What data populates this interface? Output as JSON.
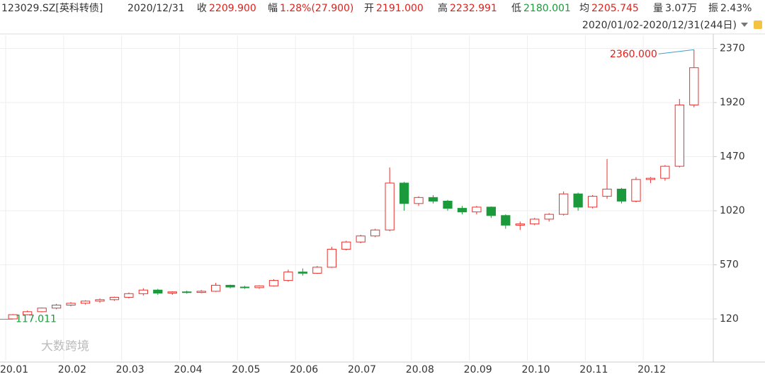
{
  "header": {
    "code": "123029.SZ[英科转债]",
    "date": "2020/12/31",
    "items": [
      {
        "label": "收",
        "value": "2209.900",
        "color": "#e0201b"
      },
      {
        "label": "幅",
        "value": "1.28%(27.900)",
        "color": "#e0201b"
      },
      {
        "label": "开",
        "value": "2191.000",
        "color": "#e0201b"
      },
      {
        "label": "高",
        "value": "2232.991",
        "color": "#e0201b"
      },
      {
        "label": "低",
        "value": "2180.001",
        "color": "#1a9a3a"
      },
      {
        "label": "均",
        "value": "2205.745",
        "color": "#e0201b"
      },
      {
        "label": "量",
        "value": "3.07万",
        "color": "#333333"
      },
      {
        "label": "振",
        "value": "2.43%",
        "color": "#333333"
      }
    ],
    "range": "2020/01/02-2020/12/31(244日)"
  },
  "watermark": "大数跨境",
  "chart_data": {
    "type": "candlestick",
    "categories": [
      "20.01",
      null,
      null,
      null,
      "20.02",
      null,
      null,
      null,
      "20.03",
      null,
      null,
      null,
      "20.04",
      null,
      null,
      null,
      "20.05",
      null,
      null,
      null,
      "20.06",
      null,
      null,
      null,
      "20.07",
      null,
      null,
      null,
      "20.08",
      null,
      null,
      null,
      "20.09",
      null,
      null,
      null,
      "20.10",
      null,
      null,
      null,
      "20.11",
      null,
      null,
      null,
      "20.12",
      null,
      null,
      null
    ],
    "open": [
      120,
      155,
      180,
      210,
      235,
      250,
      268,
      280,
      300,
      330,
      360,
      335,
      345,
      340,
      350,
      400,
      385,
      380,
      395,
      440,
      510,
      500,
      550,
      700,
      760,
      810,
      860,
      1250,
      1080,
      1130,
      1100,
      1040,
      1010,
      1050,
      980,
      900,
      910,
      950,
      990,
      1160,
      1050,
      1140,
      1200,
      1100,
      1280,
      1290,
      1390,
      1900
    ],
    "high": [
      160,
      190,
      215,
      245,
      260,
      275,
      290,
      305,
      340,
      375,
      370,
      350,
      355,
      360,
      420,
      405,
      395,
      400,
      450,
      530,
      540,
      560,
      720,
      770,
      820,
      870,
      1380,
      1260,
      1140,
      1150,
      1110,
      1060,
      1060,
      1055,
      990,
      930,
      960,
      1000,
      1180,
      1170,
      1150,
      1450,
      1210,
      1300,
      1300,
      1400,
      1950,
      2360
    ],
    "low": [
      117.011,
      150,
      175,
      200,
      225,
      240,
      255,
      270,
      290,
      315,
      320,
      320,
      330,
      335,
      345,
      375,
      370,
      370,
      390,
      430,
      480,
      495,
      545,
      690,
      750,
      800,
      850,
      1020,
      1060,
      1080,
      1020,
      990,
      990,
      960,
      870,
      860,
      900,
      930,
      980,
      1020,
      1040,
      1120,
      1080,
      1090,
      1250,
      1270,
      1380,
      1880
    ],
    "close": [
      155,
      180,
      210,
      235,
      250,
      268,
      280,
      300,
      330,
      360,
      335,
      345,
      340,
      350,
      400,
      385,
      380,
      395,
      440,
      510,
      500,
      550,
      700,
      760,
      810,
      860,
      1250,
      1080,
      1130,
      1100,
      1040,
      1010,
      1050,
      980,
      900,
      910,
      950,
      990,
      1160,
      1050,
      1140,
      1200,
      1100,
      1280,
      1290,
      1390,
      1900,
      2210
    ],
    "up_color": "#e8322e",
    "down_color": "#1a9a3a",
    "high_label": "2360.000",
    "low_label": "117.011",
    "ylim": [
      -227,
      2479
    ],
    "yticks": [
      120,
      570,
      1020,
      1470,
      1920,
      2370
    ],
    "grid": true
  }
}
